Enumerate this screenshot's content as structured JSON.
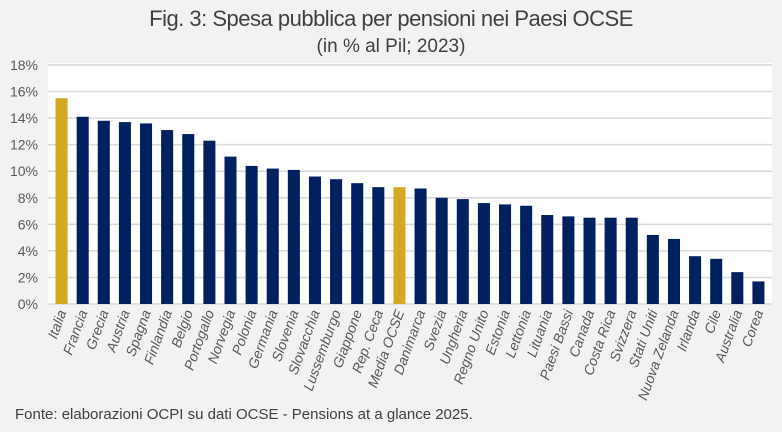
{
  "chart_data": {
    "type": "bar",
    "title": "Fig. 3: Spesa pubblica per pensioni nei Paesi OCSE",
    "subtitle": "(in % al Pil; 2023)",
    "xlabel": "",
    "ylabel": "",
    "ylim": [
      0,
      18
    ],
    "yticks": [
      0,
      2,
      4,
      6,
      8,
      10,
      12,
      14,
      16,
      18
    ],
    "ytick_labels": [
      "0%",
      "2%",
      "4%",
      "6%",
      "8%",
      "10%",
      "12%",
      "14%",
      "16%",
      "18%"
    ],
    "grid": true,
    "legend": "none",
    "categories": [
      "Italia",
      "Francia",
      "Grecia",
      "Austria",
      "Spagna",
      "Finlandia",
      "Belgio",
      "Portogallo",
      "Norvegia",
      "Polonia",
      "Germania",
      "Slovenia",
      "Slovacchia",
      "Lussemburgo",
      "Giappone",
      "Rep. Ceca",
      "Media OCSE",
      "Danimarca",
      "Svezia",
      "Ungheria",
      "Regno Unito",
      "Estonia",
      "Lettonia",
      "Lituania",
      "Paesi Bassi",
      "Canada",
      "Costa Rica",
      "Svizzera",
      "Stati Uniti",
      "Nuova Zelanda",
      "Irlanda",
      "Cile",
      "Australia",
      "Corea"
    ],
    "values": [
      15.5,
      14.1,
      13.8,
      13.7,
      13.6,
      13.1,
      12.8,
      12.3,
      11.1,
      10.4,
      10.2,
      10.1,
      9.6,
      9.4,
      9.1,
      8.8,
      8.8,
      8.7,
      8.0,
      7.9,
      7.6,
      7.5,
      7.4,
      6.7,
      6.6,
      6.5,
      6.5,
      6.5,
      5.2,
      4.9,
      3.6,
      3.4,
      2.4,
      1.7
    ],
    "highlighted": [
      "Italia",
      "Media OCSE"
    ],
    "colors": {
      "default": "#002060",
      "highlight": "#d4a821",
      "grid": "#d9d9d9",
      "plot_bg": "#ffffff"
    }
  },
  "source": "Fonte: elaborazioni OCPI su dati OCSE - Pensions at a glance 2025."
}
